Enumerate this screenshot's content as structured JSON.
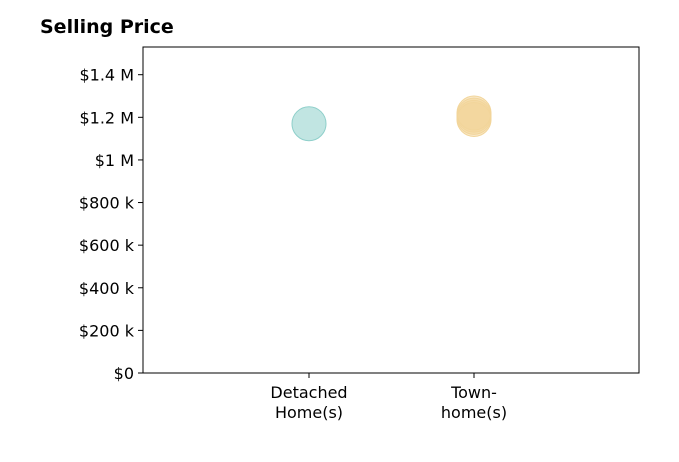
{
  "chart_data": {
    "type": "scatter",
    "title": "Selling Price",
    "xlabel": "",
    "ylabel": "",
    "categories": [
      {
        "line1": "Detached",
        "line2": "Home(s)"
      },
      {
        "line1": "Town-",
        "line2": "home(s)"
      }
    ],
    "series": [
      {
        "category_index": 0,
        "values": [
          1170000
        ],
        "color": "#8ecfca"
      },
      {
        "category_index": 1,
        "values": [
          1190000,
          1200000,
          1210000,
          1220000
        ],
        "color": "#f2d59a"
      }
    ],
    "y_ticks": [
      {
        "value": 0,
        "label": "$0"
      },
      {
        "value": 200000,
        "label": "$200 k"
      },
      {
        "value": 400000,
        "label": "$400 k"
      },
      {
        "value": 600000,
        "label": "$600 k"
      },
      {
        "value": 800000,
        "label": "$800 k"
      },
      {
        "value": 1000000,
        "label": "$1 M"
      },
      {
        "value": 1200000,
        "label": "$1.2 M"
      },
      {
        "value": 1400000,
        "label": "$1.4 M"
      }
    ],
    "ylim": [
      0,
      1530000
    ],
    "grid": false,
    "legend": "none"
  }
}
